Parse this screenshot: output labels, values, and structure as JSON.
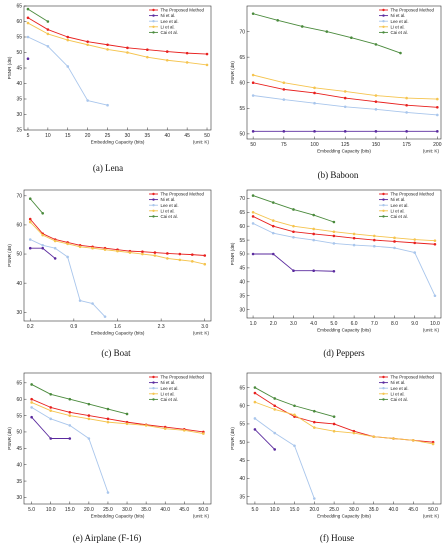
{
  "chart_data": [
    {
      "type": "line",
      "caption": "(a) Lena",
      "xlabel": "Embedding Capacity (bits)",
      "ylabel": "PSNR (dB)",
      "unit": "(unit: K)",
      "xlim": [
        4,
        51
      ],
      "ylim": [
        25,
        65
      ],
      "xticks": [
        5,
        10,
        15,
        20,
        25,
        30,
        35,
        40,
        45,
        50
      ],
      "yticks": [
        25,
        30,
        35,
        40,
        45,
        50,
        55,
        60,
        65
      ],
      "legend_position": "top-right",
      "series": [
        {
          "name": "The Proposed Method",
          "color": "#e8201e",
          "x": [
            5,
            10,
            15,
            20,
            25,
            30,
            35,
            40,
            45,
            50
          ],
          "y": [
            61.2,
            57.4,
            55.0,
            53.5,
            52.5,
            51.5,
            50.9,
            50.3,
            49.8,
            49.5
          ]
        },
        {
          "name": "Ni et al.",
          "color": "#5a2a9e",
          "x": [
            5
          ],
          "y": [
            48.0
          ]
        },
        {
          "name": "Lee et al.",
          "color": "#a9c6ec",
          "x": [
            5,
            10,
            15,
            20,
            25
          ],
          "y": [
            55.0,
            52.0,
            45.5,
            34.5,
            33.0
          ]
        },
        {
          "name": "Li et al.",
          "color": "#f5c44e",
          "x": [
            5,
            10,
            15,
            20,
            25,
            30,
            35,
            40,
            45,
            50
          ],
          "y": [
            59.5,
            56.0,
            54.0,
            52.5,
            51.0,
            50.0,
            48.5,
            47.5,
            46.8,
            46.0
          ]
        },
        {
          "name": "Cai et al.",
          "color": "#4a8a3c",
          "x": [
            5,
            10
          ],
          "y": [
            64.0,
            60.0
          ]
        }
      ]
    },
    {
      "type": "line",
      "caption": "(b) Baboon",
      "xlabel": "Embedding Capacity (bits)",
      "ylabel": "PSNR (dB)",
      "unit": "(unit: K)",
      "xlim": [
        45,
        203
      ],
      "ylim": [
        49,
        75
      ],
      "xticks": [
        50,
        75,
        100,
        125,
        150,
        175,
        200
      ],
      "yticks": [
        50,
        55,
        60,
        65,
        70
      ],
      "legend_position": "top-right",
      "series": [
        {
          "name": "The Proposed Method",
          "color": "#e8201e",
          "x": [
            50,
            75,
            100,
            125,
            150,
            175,
            200
          ],
          "y": [
            60.0,
            58.7,
            58.0,
            57.0,
            56.3,
            55.6,
            55.2
          ]
        },
        {
          "name": "Ni et al.",
          "color": "#5a2a9e",
          "x": [
            50,
            75,
            100,
            125,
            150,
            175,
            200
          ],
          "y": [
            50.5,
            50.5,
            50.5,
            50.5,
            50.5,
            50.5,
            50.5
          ]
        },
        {
          "name": "Lee et al.",
          "color": "#a9c6ec",
          "x": [
            50,
            75,
            100,
            125,
            150,
            175,
            200
          ],
          "y": [
            57.5,
            56.7,
            56.0,
            55.3,
            54.8,
            54.2,
            53.7
          ]
        },
        {
          "name": "Li et al.",
          "color": "#f5c44e",
          "x": [
            50,
            75,
            100,
            125,
            150,
            175,
            200
          ],
          "y": [
            61.5,
            60.0,
            59.0,
            58.3,
            57.5,
            57.0,
            56.8
          ]
        },
        {
          "name": "Cai et al.",
          "color": "#4a8a3c",
          "x": [
            50,
            70,
            90,
            110,
            130,
            150,
            170
          ],
          "y": [
            73.5,
            72.2,
            71.0,
            70.0,
            68.8,
            67.5,
            65.8
          ]
        }
      ]
    },
    {
      "type": "line",
      "caption": "(c) Boat",
      "xlabel": "Embedding Capacity (bits)",
      "ylabel": "PSNR (dB)",
      "unit": "(unit: K)",
      "xlim": [
        0.1,
        3.1
      ],
      "ylim": [
        27,
        72
      ],
      "xticks": [
        "0.2",
        "0.9",
        "1.6",
        "2.3",
        "3.0"
      ],
      "xtick_values": [
        0.2,
        0.9,
        1.6,
        2.3,
        3.0
      ],
      "yticks": [
        30,
        40,
        50,
        60,
        70
      ],
      "legend_position": "top-right",
      "series": [
        {
          "name": "The Proposed Method",
          "color": "#e8201e",
          "x": [
            0.2,
            0.4,
            0.6,
            0.8,
            1.0,
            1.2,
            1.4,
            1.6,
            1.8,
            2.0,
            2.2,
            2.4,
            2.6,
            2.8,
            3.0
          ],
          "y": [
            62.0,
            57.0,
            55.0,
            54.0,
            53.0,
            52.5,
            52.0,
            51.5,
            51.0,
            50.8,
            50.5,
            50.2,
            50.0,
            49.8,
            49.5
          ]
        },
        {
          "name": "Ni et al.",
          "color": "#5a2a9e",
          "x": [
            0.2,
            0.4,
            0.6
          ],
          "y": [
            52.0,
            52.0,
            48.5
          ]
        },
        {
          "name": "Lee et al.",
          "color": "#a9c6ec",
          "x": [
            0.2,
            0.4,
            0.6,
            0.8,
            1.0,
            1.2,
            1.4
          ],
          "y": [
            55.0,
            53.0,
            52.0,
            49.0,
            34.0,
            33.0,
            28.5
          ]
        },
        {
          "name": "Li et al.",
          "color": "#f5c44e",
          "x": [
            0.2,
            0.4,
            0.6,
            0.8,
            1.0,
            1.2,
            1.4,
            1.6,
            1.8,
            2.0,
            2.2,
            2.4,
            2.6,
            2.8,
            3.0
          ],
          "y": [
            61.0,
            56.5,
            54.5,
            53.5,
            52.5,
            52.0,
            51.5,
            51.0,
            50.5,
            50.0,
            49.5,
            48.5,
            48.0,
            47.5,
            46.5
          ]
        },
        {
          "name": "Cai et al.",
          "color": "#4a8a3c",
          "x": [
            0.2,
            0.4
          ],
          "y": [
            69.0,
            64.0
          ]
        }
      ]
    },
    {
      "type": "line",
      "caption": "(d) Peppers",
      "xlabel": "Embedding Capacity (bits)",
      "ylabel": "PSNR (dB)",
      "unit": "(unit: K)",
      "xlim": [
        0.7,
        10.3
      ],
      "ylim": [
        27,
        73
      ],
      "xticks": [
        "1.0",
        "2.0",
        "3.0",
        "4.0",
        "5.0",
        "6.0",
        "7.0",
        "8.0",
        "9.0",
        "10.0"
      ],
      "xtick_values": [
        1,
        2,
        3,
        4,
        5,
        6,
        7,
        8,
        9,
        10
      ],
      "yticks": [
        30,
        35,
        40,
        45,
        50,
        55,
        60,
        65,
        70
      ],
      "legend_position": "top-right",
      "series": [
        {
          "name": "The Proposed Method",
          "color": "#e8201e",
          "x": [
            1,
            2,
            3,
            4,
            5,
            6,
            7,
            8,
            9,
            10
          ],
          "y": [
            63.5,
            60.0,
            58.0,
            57.2,
            56.5,
            55.7,
            55.0,
            54.5,
            54.0,
            53.5
          ]
        },
        {
          "name": "Ni et al.",
          "color": "#5a2a9e",
          "x": [
            1,
            2,
            3,
            4,
            5
          ],
          "y": [
            50.0,
            50.0,
            44.0,
            44.0,
            43.8
          ]
        },
        {
          "name": "Lee et al.",
          "color": "#a9c6ec",
          "x": [
            1,
            2,
            3,
            4,
            5,
            6,
            7,
            8,
            9,
            10
          ],
          "y": [
            61.0,
            57.5,
            56.0,
            55.0,
            53.8,
            53.2,
            52.8,
            52.2,
            50.5,
            35.0
          ]
        },
        {
          "name": "Li et al.",
          "color": "#f5c44e",
          "x": [
            1,
            2,
            3,
            4,
            5,
            6,
            7,
            8,
            9,
            10
          ],
          "y": [
            65.0,
            62.0,
            60.0,
            59.0,
            58.0,
            57.2,
            56.5,
            55.8,
            55.2,
            54.8
          ]
        },
        {
          "name": "Cai et al.",
          "color": "#4a8a3c",
          "x": [
            1,
            2,
            3,
            4,
            5
          ],
          "y": [
            71.0,
            68.5,
            66.0,
            64.0,
            61.5
          ]
        }
      ]
    },
    {
      "type": "line",
      "caption": "(e) Airplane (F-16)",
      "xlabel": "Embedding Capacity (bits)",
      "ylabel": "PSNR (dB)",
      "unit": "(unit: K)",
      "xlim": [
        3,
        52
      ],
      "ylim": [
        28,
        68
      ],
      "xticks": [
        "5.0",
        "10.0",
        "15.0",
        "20.0",
        "25.0",
        "30.0",
        "35.0",
        "40.0",
        "45.0",
        "50.0"
      ],
      "xtick_values": [
        5,
        10,
        15,
        20,
        25,
        30,
        35,
        40,
        45,
        50
      ],
      "yticks": [
        30,
        35,
        40,
        45,
        50,
        55,
        60,
        65
      ],
      "legend_position": "top-right",
      "series": [
        {
          "name": "The Proposed Method",
          "color": "#e8201e",
          "x": [
            5,
            10,
            15,
            20,
            25,
            30,
            35,
            40,
            45,
            50
          ],
          "y": [
            60.0,
            57.5,
            56.0,
            55.0,
            54.0,
            53.0,
            52.2,
            51.5,
            50.8,
            50.0
          ]
        },
        {
          "name": "Ni et al.",
          "color": "#5a2a9e",
          "x": [
            5,
            10,
            15
          ],
          "y": [
            54.5,
            48.0,
            48.0
          ]
        },
        {
          "name": "Lee et al.",
          "color": "#a9c6ec",
          "x": [
            5,
            10,
            15,
            20,
            25
          ],
          "y": [
            57.5,
            54.0,
            52.0,
            48.0,
            31.5
          ]
        },
        {
          "name": "Li et al.",
          "color": "#f5c44e",
          "x": [
            5,
            10,
            15,
            20,
            25,
            30,
            35,
            40,
            45,
            50
          ],
          "y": [
            59.0,
            56.5,
            55.0,
            54.0,
            53.0,
            52.5,
            52.0,
            51.0,
            50.5,
            49.5
          ]
        },
        {
          "name": "Cai et al.",
          "color": "#4a8a3c",
          "x": [
            5,
            10,
            15,
            20,
            25,
            30
          ],
          "y": [
            64.5,
            61.5,
            60.0,
            58.5,
            57.0,
            55.5
          ]
        }
      ]
    },
    {
      "type": "line",
      "caption": "(f) House",
      "xlabel": "Embedding Capacity (bits)",
      "ylabel": "PSNR (dB)",
      "unit": "(unit: K)",
      "xlim": [
        3,
        52
      ],
      "ylim": [
        33,
        69
      ],
      "xticks": [
        "5.0",
        "10.0",
        "15.0",
        "20.0",
        "25.0",
        "30.0",
        "35.0",
        "40.0",
        "45.0",
        "50.0"
      ],
      "xtick_values": [
        5,
        10,
        15,
        20,
        25,
        30,
        35,
        40,
        45,
        50
      ],
      "yticks": [
        35,
        40,
        45,
        50,
        55,
        60,
        65
      ],
      "legend_position": "top-right",
      "series": [
        {
          "name": "The Proposed Method",
          "color": "#e8201e",
          "x": [
            5,
            10,
            15,
            20,
            25,
            30,
            35,
            40,
            45,
            50
          ],
          "y": [
            63.5,
            60.0,
            57.0,
            55.5,
            55.0,
            53.0,
            51.5,
            51.0,
            50.5,
            50.0
          ]
        },
        {
          "name": "Ni et al.",
          "color": "#5a2a9e",
          "x": [
            5,
            10
          ],
          "y": [
            53.5,
            48.0
          ]
        },
        {
          "name": "Lee et al.",
          "color": "#a9c6ec",
          "x": [
            5,
            10,
            15,
            20
          ],
          "y": [
            56.5,
            52.5,
            49.0,
            34.5
          ]
        },
        {
          "name": "Li et al.",
          "color": "#f5c44e",
          "x": [
            5,
            10,
            15,
            20,
            25,
            30,
            35,
            40,
            45,
            50
          ],
          "y": [
            61.0,
            59.0,
            57.5,
            54.0,
            53.0,
            52.5,
            51.5,
            51.0,
            50.5,
            49.5
          ]
        },
        {
          "name": "Cai et al.",
          "color": "#4a8a3c",
          "x": [
            5,
            10,
            15,
            20,
            25
          ],
          "y": [
            65.0,
            62.0,
            60.0,
            58.5,
            57.0
          ]
        }
      ]
    }
  ]
}
